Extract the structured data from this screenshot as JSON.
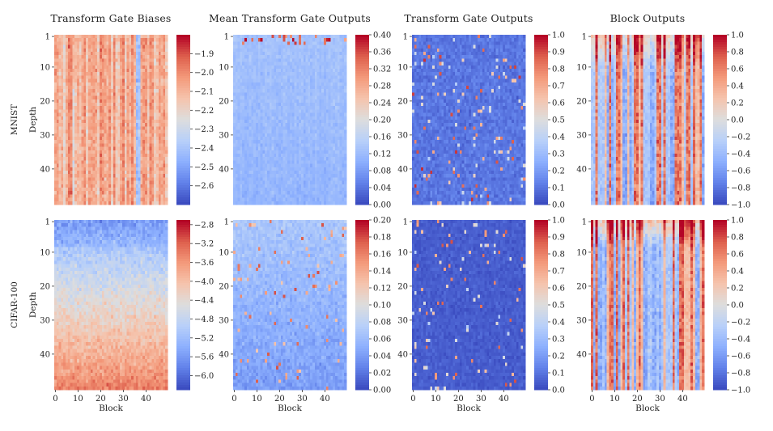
{
  "chart_data": {
    "type": "heatmap",
    "colormap": "coolwarm",
    "column_titles": [
      "Transform Gate Biases",
      "Mean Transform Gate Outputs",
      "Transform Gate Outputs",
      "Block Outputs"
    ],
    "row_labels": [
      "MNIST",
      "CIFAR-100"
    ],
    "xlabel": "Block",
    "ylabel": "Depth",
    "x_ticks": [
      "0",
      "10",
      "20",
      "30",
      "40"
    ],
    "y_ticks": [
      "1",
      "10",
      "20",
      "30",
      "40"
    ],
    "n_blocks": 50,
    "n_depth": 50,
    "panels": [
      {
        "row": 0,
        "col": 0,
        "pattern": "bias",
        "vmin": -2.7,
        "vmax": -1.8,
        "colorbar_ticks": [
          "−1.9",
          "−2.0",
          "−2.1",
          "−2.2",
          "−2.3",
          "−2.4",
          "−2.5",
          "−2.6"
        ],
        "colorbar_values": [
          -1.9,
          -2.0,
          -2.1,
          -2.2,
          -2.3,
          -2.4,
          -2.5,
          -2.6
        ]
      },
      {
        "row": 0,
        "col": 1,
        "pattern": "mean_mnist",
        "vmin": 0.0,
        "vmax": 0.4,
        "colorbar_ticks": [
          "0.40",
          "0.36",
          "0.32",
          "0.28",
          "0.24",
          "0.20",
          "0.16",
          "0.12",
          "0.08",
          "0.04",
          "0.00"
        ],
        "colorbar_values": [
          0.4,
          0.36,
          0.32,
          0.28,
          0.24,
          0.2,
          0.16,
          0.12,
          0.08,
          0.04,
          0.0
        ]
      },
      {
        "row": 0,
        "col": 2,
        "pattern": "gate",
        "vmin": 0.0,
        "vmax": 1.0,
        "colorbar_ticks": [
          "1.0",
          "0.9",
          "0.8",
          "0.7",
          "0.6",
          "0.5",
          "0.4",
          "0.3",
          "0.2",
          "0.1",
          "0.0"
        ],
        "colorbar_values": [
          1.0,
          0.9,
          0.8,
          0.7,
          0.6,
          0.5,
          0.4,
          0.3,
          0.2,
          0.1,
          0.0
        ]
      },
      {
        "row": 0,
        "col": 3,
        "pattern": "block",
        "vmin": -1.0,
        "vmax": 1.0,
        "colorbar_ticks": [
          "1.0",
          "0.8",
          "0.6",
          "0.4",
          "0.2",
          "0.0",
          "−0.2",
          "−0.4",
          "−0.6",
          "−0.8",
          "−1.0"
        ],
        "colorbar_values": [
          1.0,
          0.8,
          0.6,
          0.4,
          0.2,
          0.0,
          -0.2,
          -0.4,
          -0.6,
          -0.8,
          -1.0
        ]
      },
      {
        "row": 1,
        "col": 0,
        "pattern": "bias_cifar",
        "vmin": -6.3,
        "vmax": -2.7,
        "colorbar_ticks": [
          "−2.8",
          "−3.2",
          "−3.6",
          "−4.0",
          "−4.4",
          "−4.8",
          "−5.2",
          "−5.6",
          "−6.0"
        ],
        "colorbar_values": [
          -2.8,
          -3.2,
          -3.6,
          -4.0,
          -4.4,
          -4.8,
          -5.2,
          -5.6,
          -6.0
        ]
      },
      {
        "row": 1,
        "col": 1,
        "pattern": "mean_cifar",
        "vmin": 0.0,
        "vmax": 0.2,
        "colorbar_ticks": [
          "0.20",
          "0.18",
          "0.16",
          "0.14",
          "0.12",
          "0.10",
          "0.08",
          "0.06",
          "0.04",
          "0.02",
          "0.00"
        ],
        "colorbar_values": [
          0.2,
          0.18,
          0.16,
          0.14,
          0.12,
          0.1,
          0.08,
          0.06,
          0.04,
          0.02,
          0.0
        ]
      },
      {
        "row": 1,
        "col": 2,
        "pattern": "gate_cifar",
        "vmin": 0.0,
        "vmax": 1.0,
        "colorbar_ticks": [
          "1.0",
          "0.9",
          "0.8",
          "0.7",
          "0.6",
          "0.5",
          "0.4",
          "0.3",
          "0.2",
          "0.1",
          "0.0"
        ],
        "colorbar_values": [
          1.0,
          0.9,
          0.8,
          0.7,
          0.6,
          0.5,
          0.4,
          0.3,
          0.2,
          0.1,
          0.0
        ]
      },
      {
        "row": 1,
        "col": 3,
        "pattern": "block_cifar",
        "vmin": -1.0,
        "vmax": 1.0,
        "colorbar_ticks": [
          "1.0",
          "0.8",
          "0.6",
          "0.4",
          "0.2",
          "0.0",
          "−0.2",
          "−0.4",
          "−0.6",
          "−0.8",
          "−1.0"
        ],
        "colorbar_values": [
          1.0,
          0.8,
          0.6,
          0.4,
          0.2,
          0.0,
          -0.2,
          -0.4,
          -0.6,
          -0.8,
          -1.0
        ]
      }
    ]
  }
}
